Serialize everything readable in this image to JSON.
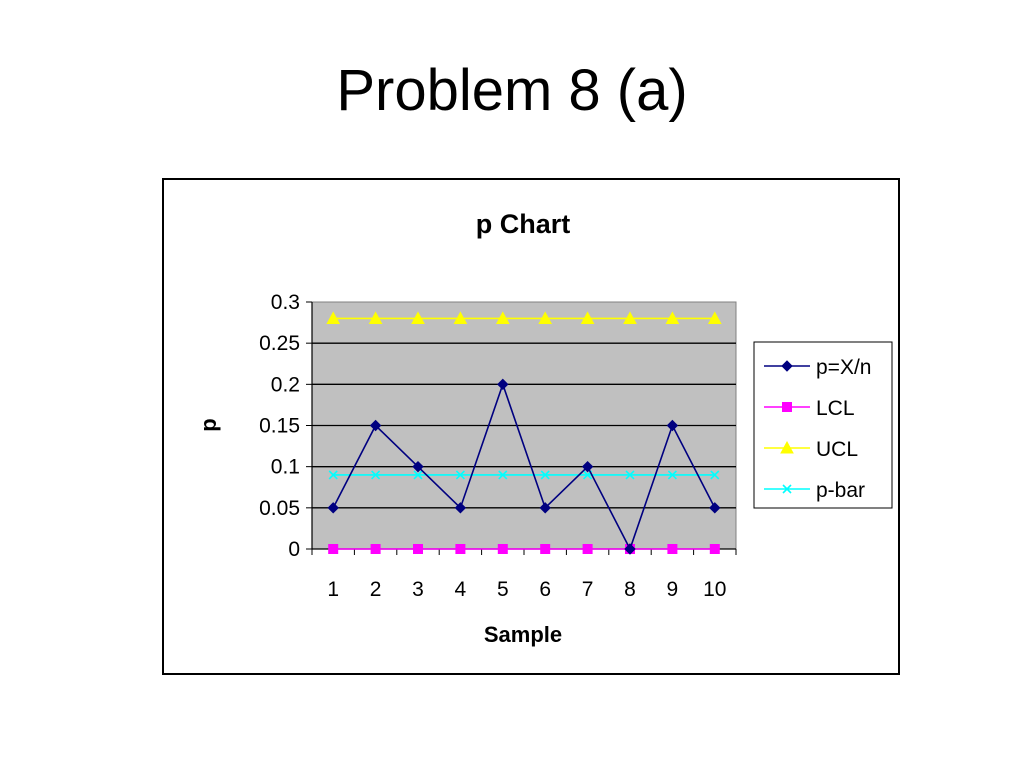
{
  "slide": {
    "title": "Problem 8 (a)"
  },
  "chart_data": {
    "type": "line",
    "title": "p Chart",
    "xlabel": "Sample",
    "ylabel": "p",
    "x": [
      1,
      2,
      3,
      4,
      5,
      6,
      7,
      8,
      9,
      10
    ],
    "ylim": [
      0,
      0.3
    ],
    "yticks": [
      "0",
      "0.05",
      "0.1",
      "0.15",
      "0.2",
      "0.25",
      "0.3"
    ],
    "grid": true,
    "legend_position": "right",
    "plot_background": "#C0C0C0",
    "series": [
      {
        "name": "p=X/n",
        "values": [
          0.05,
          0.15,
          0.1,
          0.05,
          0.2,
          0.05,
          0.1,
          0,
          0.15,
          0.05
        ],
        "color": "#000080",
        "marker": "diamond"
      },
      {
        "name": "LCL",
        "values": [
          0,
          0,
          0,
          0,
          0,
          0,
          0,
          0,
          0,
          0
        ],
        "color": "#FF00FF",
        "marker": "square"
      },
      {
        "name": "UCL",
        "values": [
          0.28,
          0.28,
          0.28,
          0.28,
          0.28,
          0.28,
          0.28,
          0.28,
          0.28,
          0.28
        ],
        "color": "#FFFF00",
        "marker": "triangle"
      },
      {
        "name": "p-bar",
        "values": [
          0.09,
          0.09,
          0.09,
          0.09,
          0.09,
          0.09,
          0.09,
          0.09,
          0.09,
          0.09
        ],
        "color": "#00FFFF",
        "marker": "x"
      }
    ]
  }
}
